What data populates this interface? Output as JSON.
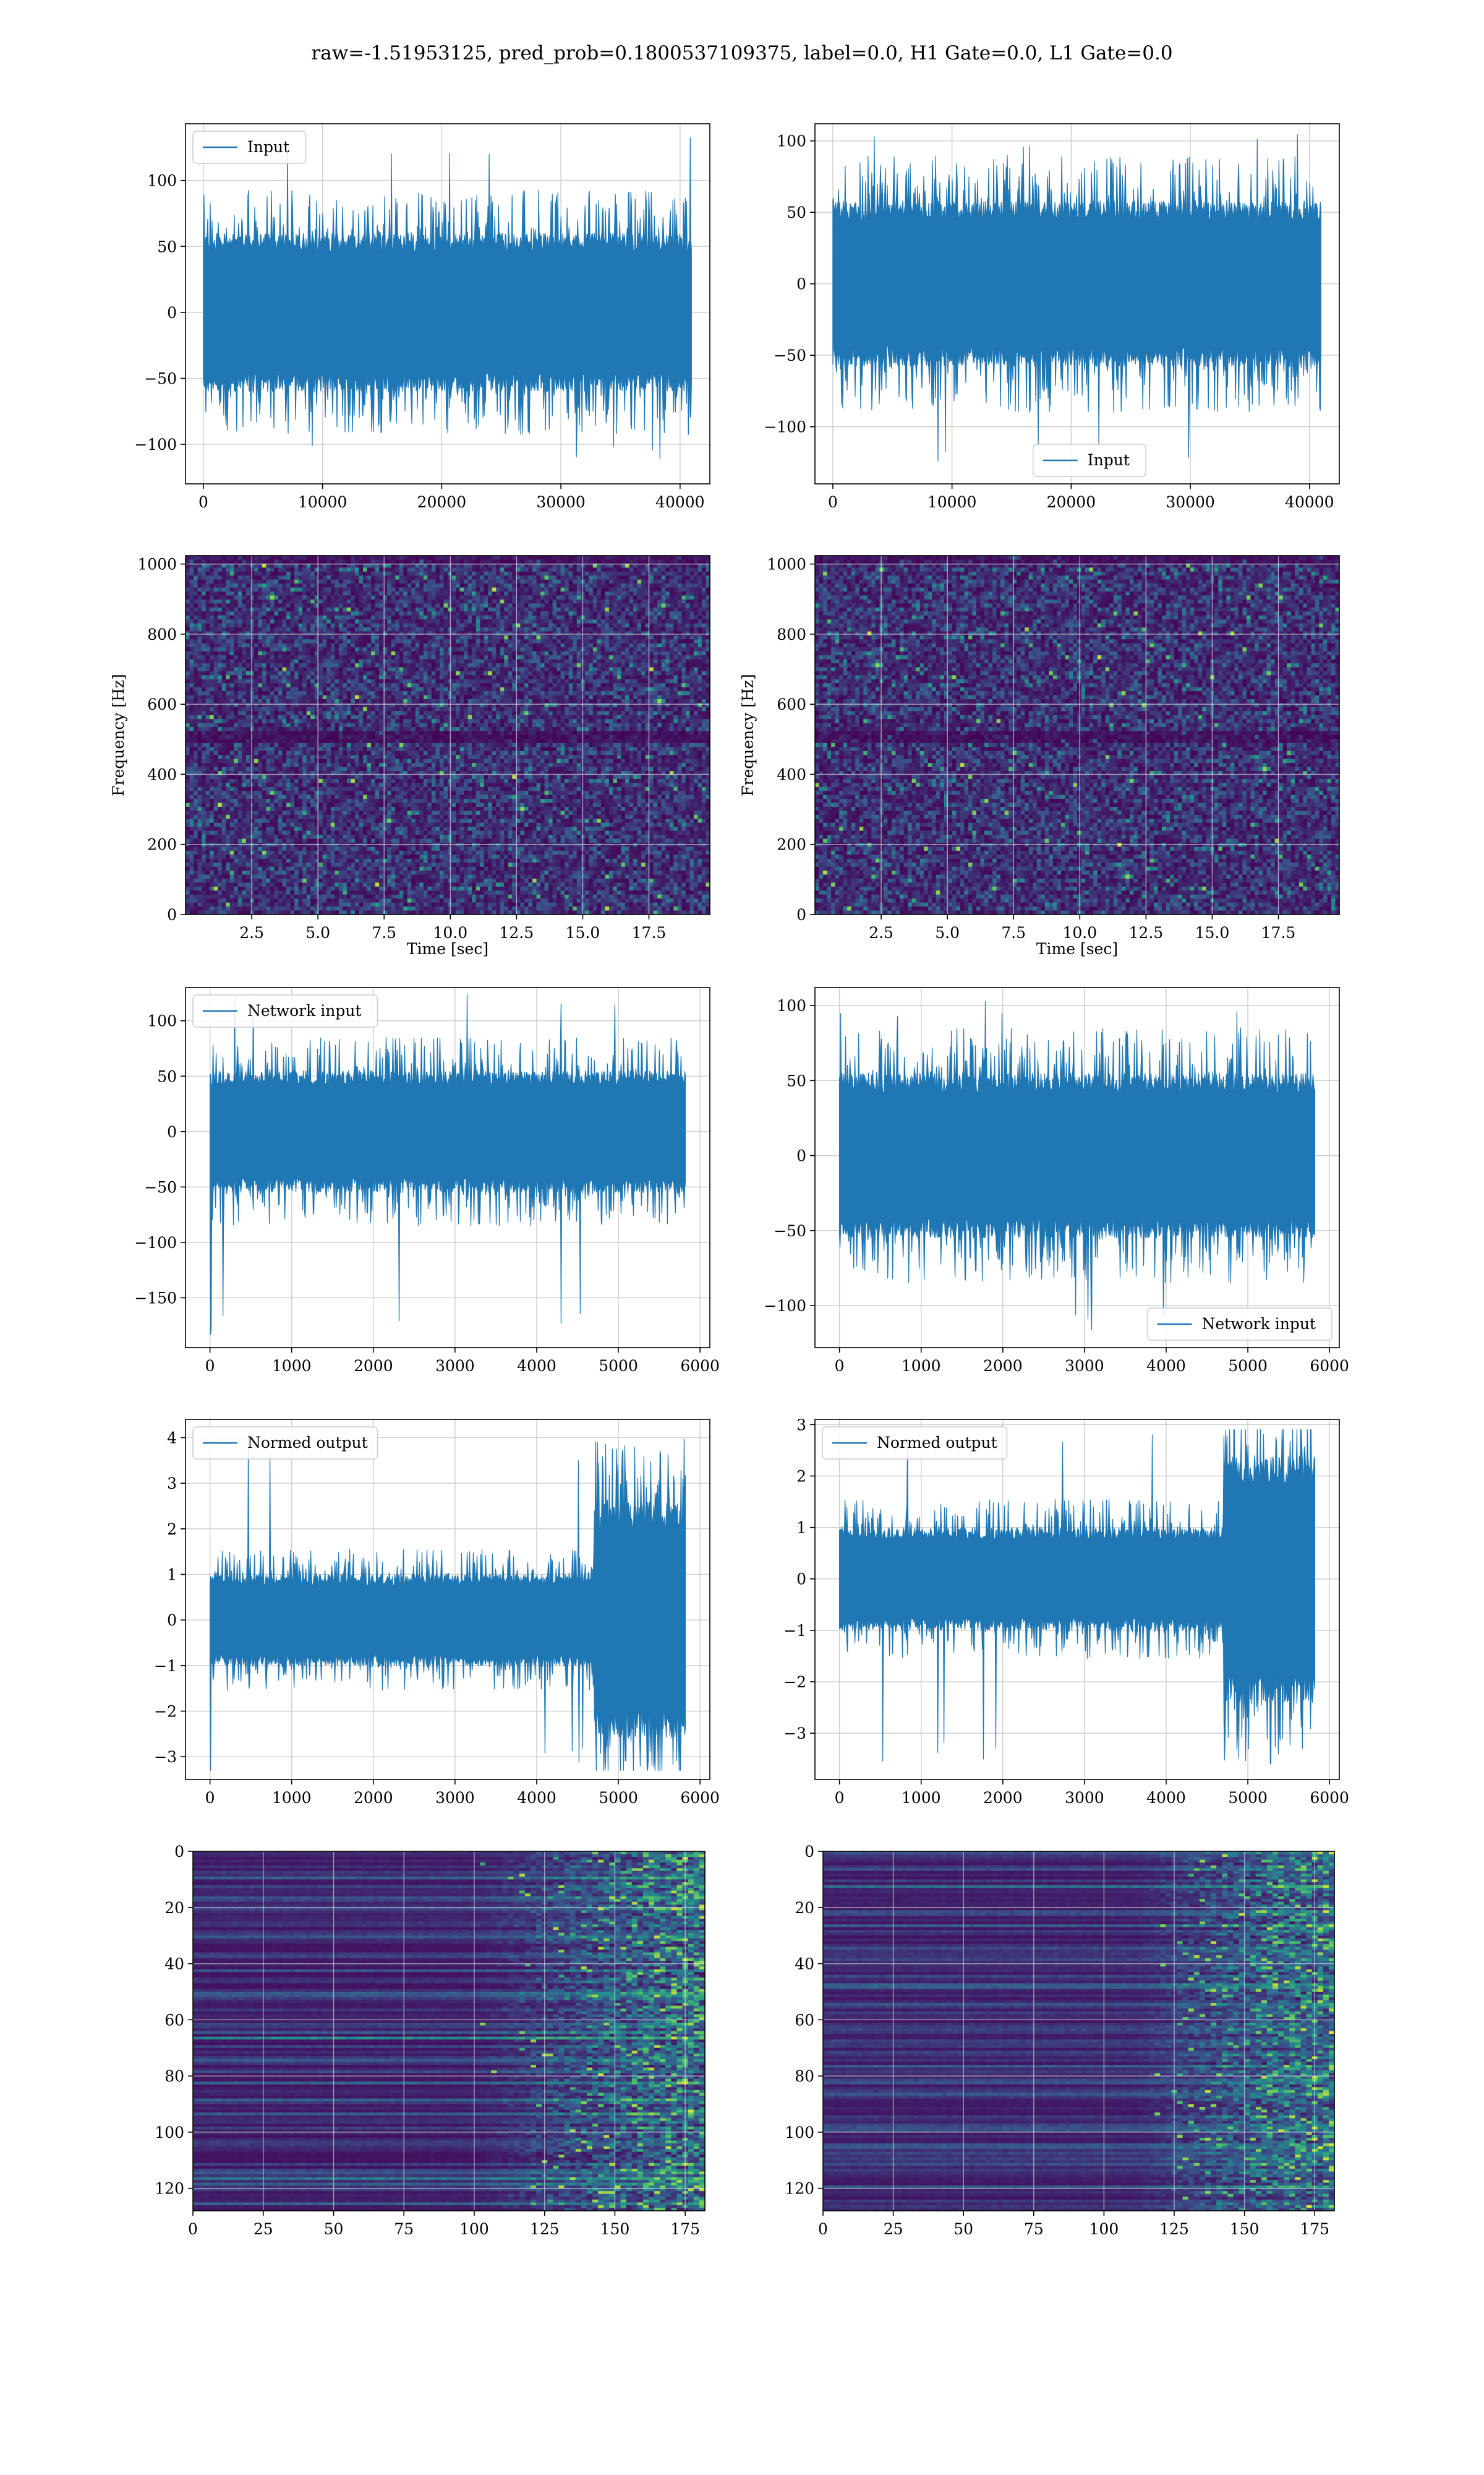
{
  "suptitle": "raw=-1.51953125, pred_prob=0.1800537109375, label=0.0, H1 Gate=0.0, L1 Gate=0.0",
  "colors": {
    "line": "#1f77b4",
    "grid": "#d0d0d0",
    "viridis_dark": "#440154",
    "viridis_mid": "#31688e",
    "viridis_green": "#35b779",
    "viridis_yellow": "#fde725"
  },
  "chart_data": [
    {
      "id": "input_h1",
      "type": "line",
      "legend": "Input",
      "legend_loc": "upper left",
      "xlim": [
        -1500,
        42500
      ],
      "ylim": [
        -130,
        143
      ],
      "xticks": [
        0,
        10000,
        20000,
        30000,
        40000
      ],
      "yticks": [
        -100,
        -50,
        0,
        50,
        100
      ],
      "series": [
        {
          "name": "Input",
          "n": 40960,
          "typical_amplitude": 60,
          "max": 135,
          "min": -118
        }
      ]
    },
    {
      "id": "input_l1",
      "type": "line",
      "legend": "Input",
      "legend_loc": "lower center",
      "xlim": [
        -1500,
        42500
      ],
      "ylim": [
        -140,
        112
      ],
      "xticks": [
        0,
        10000,
        20000,
        30000,
        40000
      ],
      "yticks": [
        -100,
        -50,
        0,
        50,
        100
      ],
      "series": [
        {
          "name": "Input",
          "n": 40960,
          "typical_amplitude": 58,
          "max": 105,
          "min": -128
        }
      ]
    },
    {
      "id": "spec_h1",
      "type": "heatmap",
      "xlabel": "Time [sec]",
      "ylabel": "Frequency [Hz]",
      "xlim": [
        0,
        19.8
      ],
      "ylim": [
        0,
        1024
      ],
      "xticks": [
        "2.5",
        "5.0",
        "7.5",
        "10.0",
        "12.5",
        "15.0",
        "17.5"
      ],
      "yticks": [
        0,
        200,
        400,
        600,
        800,
        1000
      ],
      "dark_band_hz": [
        490,
        520
      ]
    },
    {
      "id": "spec_l1",
      "type": "heatmap",
      "xlabel": "Time [sec]",
      "ylabel": "Frequency [Hz]",
      "xlim": [
        0,
        19.8
      ],
      "ylim": [
        0,
        1024
      ],
      "xticks": [
        "2.5",
        "5.0",
        "7.5",
        "10.0",
        "12.5",
        "15.0",
        "17.5"
      ],
      "yticks": [
        0,
        200,
        400,
        600,
        800,
        1000
      ],
      "dark_band_hz": [
        490,
        520
      ]
    },
    {
      "id": "net_h1",
      "type": "line",
      "legend": "Network input",
      "legend_loc": "upper left",
      "xlim": [
        -300,
        6120
      ],
      "ylim": [
        -195,
        130
      ],
      "xticks": [
        0,
        1000,
        2000,
        3000,
        4000,
        5000,
        6000
      ],
      "yticks": [
        -150,
        -100,
        -50,
        0,
        50,
        100
      ],
      "series": [
        {
          "name": "Network input",
          "n": 5820,
          "typical_amplitude": 55,
          "max": 124,
          "min": -183
        }
      ]
    },
    {
      "id": "net_l1",
      "type": "line",
      "legend": "Network input",
      "legend_loc": "lower right",
      "xlim": [
        -300,
        6120
      ],
      "ylim": [
        -128,
        112
      ],
      "xticks": [
        0,
        1000,
        2000,
        3000,
        4000,
        5000,
        6000
      ],
      "yticks": [
        -100,
        -50,
        0,
        50,
        100
      ],
      "series": [
        {
          "name": "Network input",
          "n": 5820,
          "typical_amplitude": 55,
          "max": 104,
          "min": -117
        }
      ]
    },
    {
      "id": "norm_h1",
      "type": "line",
      "legend": "Normed output",
      "legend_loc": "upper left",
      "xlim": [
        -300,
        6120
      ],
      "ylim": [
        -3.5,
        4.4
      ],
      "xticks": [
        0,
        1000,
        2000,
        3000,
        4000,
        5000,
        6000
      ],
      "yticks": [
        -3,
        -2,
        -1,
        0,
        1,
        2,
        3,
        4
      ],
      "series": [
        {
          "name": "Normed output",
          "n": 5820,
          "typical_amplitude": 1.0,
          "burst_start": 4700,
          "burst_amplitude": 2.6,
          "max": 4.1,
          "min": -3.3
        }
      ]
    },
    {
      "id": "norm_l1",
      "type": "line",
      "legend": "Normed output",
      "legend_loc": "upper left",
      "xlim": [
        -300,
        6120
      ],
      "ylim": [
        -3.9,
        3.1
      ],
      "xticks": [
        0,
        1000,
        2000,
        3000,
        4000,
        5000,
        6000
      ],
      "yticks": [
        -3,
        -2,
        -1,
        0,
        1,
        2,
        3
      ],
      "series": [
        {
          "name": "Normed output",
          "n": 5820,
          "typical_amplitude": 1.0,
          "burst_start": 4700,
          "burst_amplitude": 2.4,
          "max": 2.9,
          "min": -3.6
        }
      ]
    },
    {
      "id": "feat_h1",
      "type": "heatmap",
      "xlim": [
        0,
        182
      ],
      "ylim": [
        0,
        128
      ],
      "y_inverted": true,
      "xticks": [
        0,
        25,
        50,
        75,
        100,
        125,
        150,
        175
      ],
      "yticks": [
        0,
        20,
        40,
        60,
        80,
        100,
        120
      ],
      "activity_start_col": 100
    },
    {
      "id": "feat_l1",
      "type": "heatmap",
      "xlim": [
        0,
        182
      ],
      "ylim": [
        0,
        128
      ],
      "y_inverted": true,
      "xticks": [
        0,
        25,
        50,
        75,
        100,
        125,
        150,
        175
      ],
      "yticks": [
        0,
        20,
        40,
        60,
        80,
        100,
        120
      ],
      "activity_start_col": 110
    }
  ]
}
